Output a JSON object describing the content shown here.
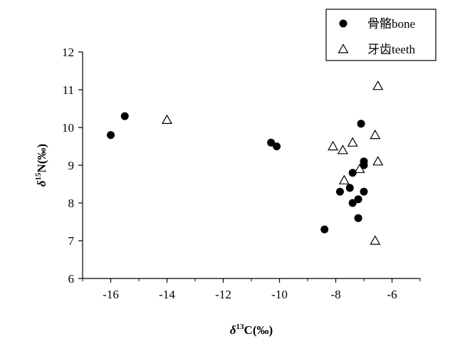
{
  "chart_data": {
    "type": "scatter",
    "xlabel": {
      "delta": "δ",
      "sup": "13",
      "rest": "C(‰)"
    },
    "ylabel": {
      "delta": "δ",
      "sup": "15",
      "rest": "N(‰)"
    },
    "xlim": [
      -17,
      -5
    ],
    "ylim": [
      6,
      12
    ],
    "xticks": [
      -16,
      -14,
      -12,
      -10,
      -8,
      -6
    ],
    "yticks": [
      6,
      7,
      8,
      9,
      10,
      11,
      12
    ],
    "xtick_labels": [
      "-16",
      "-14",
      "-12",
      "-10",
      "-8",
      "-6"
    ],
    "ytick_labels": [
      "6",
      "7",
      "8",
      "9",
      "10",
      "11",
      "12"
    ],
    "grid": false,
    "legend_position": "top-right, outside plot area",
    "series": [
      {
        "name": "骨骼bone",
        "marker": "filled-circle",
        "color": "#000000",
        "points": [
          [
            -16.0,
            9.8
          ],
          [
            -15.5,
            10.3
          ],
          [
            -10.3,
            9.6
          ],
          [
            -10.1,
            9.5
          ],
          [
            -8.4,
            7.3
          ],
          [
            -7.85,
            8.3
          ],
          [
            -7.5,
            8.4
          ],
          [
            -7.4,
            8.8
          ],
          [
            -7.4,
            8.0
          ],
          [
            -7.2,
            8.1
          ],
          [
            -7.2,
            7.6
          ],
          [
            -7.1,
            10.1
          ],
          [
            -7.0,
            9.1
          ],
          [
            -7.0,
            9.0
          ],
          [
            -7.0,
            8.3
          ]
        ]
      },
      {
        "name": "牙齿teeth",
        "marker": "open-triangle",
        "color": "#000000",
        "points": [
          [
            -14.0,
            10.2
          ],
          [
            -8.1,
            9.5
          ],
          [
            -7.75,
            9.4
          ],
          [
            -7.7,
            8.6
          ],
          [
            -7.4,
            9.6
          ],
          [
            -7.15,
            8.9
          ],
          [
            -6.6,
            9.8
          ],
          [
            -6.5,
            11.1
          ],
          [
            -6.5,
            9.1
          ],
          [
            -6.6,
            7.0
          ]
        ]
      }
    ]
  }
}
